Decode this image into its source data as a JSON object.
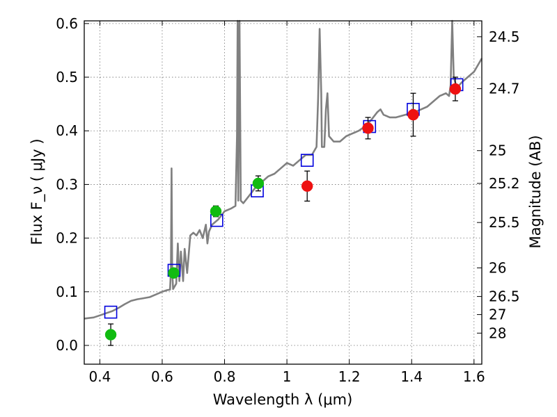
{
  "chart_data": {
    "type": "scatter",
    "xlabel": "Wavelength  λ (μm)",
    "ylabel": "Flux  F_ν  ( μJy )",
    "ylabel_right": "Magnitude (AB)",
    "xlim": [
      0.35,
      1.625
    ],
    "ylim": [
      -0.035,
      0.605
    ],
    "grid": true,
    "x_ticks": [
      0.4,
      0.6,
      0.8,
      1.0,
      1.2,
      1.4,
      1.6
    ],
    "x_tick_labels": [
      "0.4",
      "0.6",
      "0.8",
      "1",
      "1.2",
      "1.4",
      "1.6"
    ],
    "y_ticks": [
      0.0,
      0.1,
      0.2,
      0.3,
      0.4,
      0.5,
      0.6
    ],
    "y_tick_labels": [
      "0.0",
      "0.1",
      "0.2",
      "0.3",
      "0.4",
      "0.5",
      "0.6"
    ],
    "right_axis_ticks": [
      {
        "label": "24.5",
        "flux": 0.5754
      },
      {
        "label": "24.7",
        "flux": 0.4786
      },
      {
        "label": "25",
        "flux": 0.3631
      },
      {
        "label": "25.2",
        "flux": 0.302
      },
      {
        "label": "25.5",
        "flux": 0.2291
      },
      {
        "label": "26",
        "flux": 0.1445
      },
      {
        "label": "26.5",
        "flux": 0.0912
      },
      {
        "label": "27",
        "flux": 0.0575
      },
      {
        "label": "28",
        "flux": 0.0229
      }
    ],
    "series": [
      {
        "kind": "line",
        "color": "#808080",
        "points": [
          [
            0.35,
            0.05
          ],
          [
            0.38,
            0.052
          ],
          [
            0.4,
            0.056
          ],
          [
            0.42,
            0.06
          ],
          [
            0.44,
            0.064
          ],
          [
            0.46,
            0.07
          ],
          [
            0.48,
            0.077
          ],
          [
            0.5,
            0.083
          ],
          [
            0.52,
            0.086
          ],
          [
            0.54,
            0.088
          ],
          [
            0.56,
            0.09
          ],
          [
            0.58,
            0.095
          ],
          [
            0.6,
            0.1
          ],
          [
            0.615,
            0.103
          ],
          [
            0.625,
            0.104
          ],
          [
            0.628,
            0.14
          ],
          [
            0.63,
            0.33
          ],
          [
            0.632,
            0.14
          ],
          [
            0.635,
            0.105
          ],
          [
            0.645,
            0.115
          ],
          [
            0.65,
            0.19
          ],
          [
            0.655,
            0.12
          ],
          [
            0.66,
            0.175
          ],
          [
            0.667,
            0.12
          ],
          [
            0.672,
            0.18
          ],
          [
            0.68,
            0.135
          ],
          [
            0.69,
            0.205
          ],
          [
            0.7,
            0.21
          ],
          [
            0.71,
            0.205
          ],
          [
            0.72,
            0.215
          ],
          [
            0.73,
            0.2
          ],
          [
            0.74,
            0.225
          ],
          [
            0.745,
            0.19
          ],
          [
            0.75,
            0.212
          ],
          [
            0.76,
            0.225
          ],
          [
            0.78,
            0.235
          ],
          [
            0.8,
            0.25
          ],
          [
            0.82,
            0.255
          ],
          [
            0.835,
            0.26
          ],
          [
            0.84,
            0.39
          ],
          [
            0.842,
            0.62
          ],
          [
            0.844,
            0.27
          ],
          [
            0.848,
            0.62
          ],
          [
            0.852,
            0.27
          ],
          [
            0.86,
            0.265
          ],
          [
            0.88,
            0.28
          ],
          [
            0.9,
            0.295
          ],
          [
            0.92,
            0.305
          ],
          [
            0.94,
            0.315
          ],
          [
            0.96,
            0.32
          ],
          [
            0.98,
            0.33
          ],
          [
            1.0,
            0.34
          ],
          [
            1.02,
            0.335
          ],
          [
            1.04,
            0.345
          ],
          [
            1.06,
            0.355
          ],
          [
            1.08,
            0.355
          ],
          [
            1.095,
            0.37
          ],
          [
            1.1,
            0.46
          ],
          [
            1.105,
            0.59
          ],
          [
            1.11,
            0.47
          ],
          [
            1.112,
            0.37
          ],
          [
            1.12,
            0.37
          ],
          [
            1.125,
            0.44
          ],
          [
            1.13,
            0.47
          ],
          [
            1.135,
            0.39
          ],
          [
            1.15,
            0.38
          ],
          [
            1.17,
            0.38
          ],
          [
            1.19,
            0.39
          ],
          [
            1.21,
            0.395
          ],
          [
            1.23,
            0.4
          ],
          [
            1.25,
            0.408
          ],
          [
            1.27,
            0.42
          ],
          [
            1.29,
            0.435
          ],
          [
            1.3,
            0.44
          ],
          [
            1.31,
            0.43
          ],
          [
            1.33,
            0.425
          ],
          [
            1.35,
            0.425
          ],
          [
            1.38,
            0.43
          ],
          [
            1.41,
            0.435
          ],
          [
            1.43,
            0.44
          ],
          [
            1.45,
            0.445
          ],
          [
            1.47,
            0.455
          ],
          [
            1.49,
            0.465
          ],
          [
            1.51,
            0.47
          ],
          [
            1.52,
            0.465
          ],
          [
            1.525,
            0.485
          ],
          [
            1.53,
            0.61
          ],
          [
            1.535,
            0.5
          ],
          [
            1.545,
            0.48
          ],
          [
            1.56,
            0.49
          ],
          [
            1.58,
            0.5
          ],
          [
            1.6,
            0.51
          ],
          [
            1.61,
            0.52
          ],
          [
            1.625,
            0.535
          ]
        ]
      },
      {
        "kind": "squares",
        "color": "#0000dd",
        "points": [
          [
            0.435,
            0.062
          ],
          [
            0.638,
            0.14
          ],
          [
            0.775,
            0.233
          ],
          [
            0.905,
            0.288
          ],
          [
            1.065,
            0.345
          ],
          [
            1.265,
            0.408
          ],
          [
            1.405,
            0.44
          ],
          [
            1.545,
            0.486
          ]
        ]
      },
      {
        "kind": "points",
        "color": "#11bb11",
        "points": [
          {
            "x": 0.435,
            "y": 0.02,
            "err": 0.02
          },
          {
            "x": 0.637,
            "y": 0.135,
            "err": 0.008
          },
          {
            "x": 0.772,
            "y": 0.25,
            "err": 0.01
          },
          {
            "x": 0.908,
            "y": 0.302,
            "err": 0.014
          }
        ]
      },
      {
        "kind": "points",
        "color": "#ee1111",
        "points": [
          {
            "x": 1.065,
            "y": 0.297,
            "err": 0.028
          },
          {
            "x": 1.26,
            "y": 0.405,
            "err": 0.02
          },
          {
            "x": 1.405,
            "y": 0.43,
            "err": 0.04
          },
          {
            "x": 1.54,
            "y": 0.478,
            "err": 0.022
          }
        ]
      }
    ]
  }
}
